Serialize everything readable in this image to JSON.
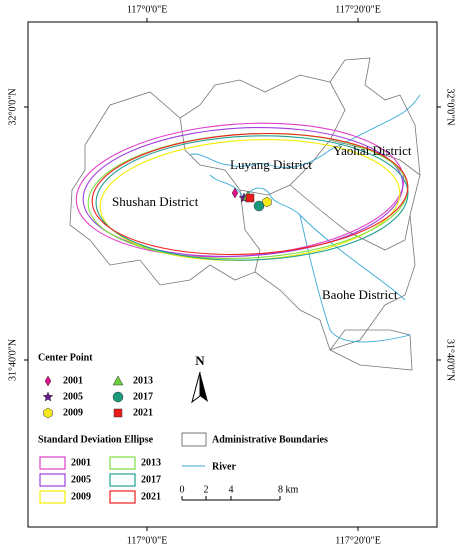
{
  "graticule": {
    "top": [
      "117°0'0\"E",
      "117°20'0\"E"
    ],
    "bottom": [
      "117°0'0\"E",
      "117°20'0\"E"
    ],
    "left": [
      "32°0'0\"N",
      "31°40'0\"N"
    ],
    "right": [
      "32°0'0\"N",
      "31°40'0\"N"
    ]
  },
  "districts": [
    "Luyang District",
    "Yaohai District",
    "Shushan District",
    "Baohe District"
  ],
  "center_point": {
    "title": "Center Point",
    "items": [
      {
        "year": "2001",
        "color": "#e0108c",
        "shape": "diamond"
      },
      {
        "year": "2005",
        "color": "#6a1a8c",
        "shape": "star"
      },
      {
        "year": "2009",
        "color": "#f5e81a",
        "shape": "hexagon"
      },
      {
        "year": "2013",
        "color": "#6ccf3a",
        "shape": "triangle"
      },
      {
        "year": "2017",
        "color": "#1a9a7a",
        "shape": "circle"
      },
      {
        "year": "2021",
        "color": "#e81a1a",
        "shape": "square"
      }
    ]
  },
  "ellipse_legend": {
    "title": "Standard Deviation Ellipse",
    "items": [
      {
        "year": "2001",
        "color": "#e040c8"
      },
      {
        "year": "2005",
        "color": "#a040e0"
      },
      {
        "year": "2009",
        "color": "#f0f000"
      },
      {
        "year": "2013",
        "color": "#80e040"
      },
      {
        "year": "2017",
        "color": "#20a090"
      },
      {
        "year": "2021",
        "color": "#f02020"
      }
    ]
  },
  "legend": {
    "boundaries": "Administrative Boundaries",
    "river": "River",
    "north": "N"
  },
  "scale_bar": {
    "labels": [
      "0",
      "2",
      "4",
      "8 km"
    ]
  }
}
